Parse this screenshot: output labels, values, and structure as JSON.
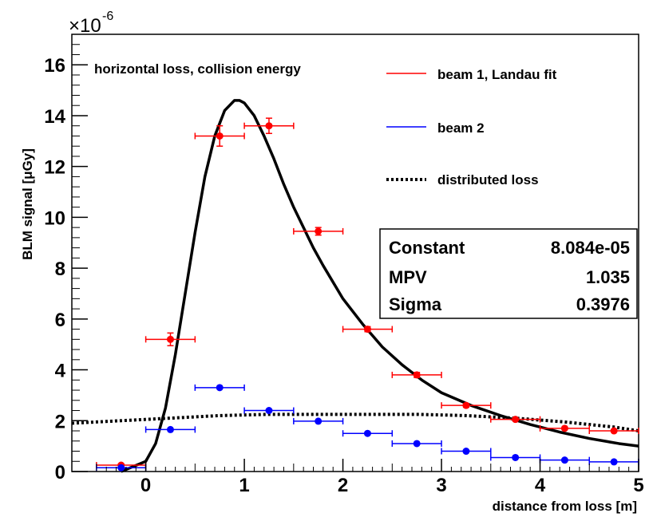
{
  "chart_data": {
    "type": "scatter",
    "xlabel": "distance from loss [m]",
    "ylabel": "BLM signal [μGy]",
    "y_multiplier": "×10",
    "y_multiplier_exponent": "-6",
    "annotation": "horizontal loss, collision energy",
    "xlim": [
      -0.75,
      5
    ],
    "ylim": [
      0,
      17.2
    ],
    "x_ticks": [
      0,
      1,
      2,
      3,
      4,
      5
    ],
    "y_ticks": [
      0,
      2,
      4,
      6,
      8,
      10,
      12,
      14,
      16
    ],
    "grid": false,
    "legend_position": "top-right",
    "series": [
      {
        "name": "beam 1, Landau fit",
        "color": "#ff0000",
        "x": [
          -0.25,
          0.25,
          0.75,
          1.25,
          1.75,
          2.25,
          2.75,
          3.25,
          3.75,
          4.25,
          4.75
        ],
        "x_err": 0.25,
        "y": [
          0.25,
          5.2,
          13.2,
          13.6,
          9.45,
          5.6,
          3.8,
          2.6,
          2.05,
          1.7,
          1.6
        ],
        "y_err": [
          0.05,
          0.25,
          0.4,
          0.3,
          0.15,
          0.1,
          0.1,
          0.07,
          0.05,
          0.05,
          0.05
        ]
      },
      {
        "name": "beam 2",
        "color": "#0000ff",
        "x": [
          -0.25,
          0.25,
          0.75,
          1.25,
          1.75,
          2.25,
          2.75,
          3.25,
          3.75,
          4.25,
          4.75
        ],
        "x_err": 0.25,
        "y": [
          0.15,
          1.65,
          3.3,
          2.4,
          1.98,
          1.5,
          1.1,
          0.8,
          0.55,
          0.45,
          0.38
        ]
      },
      {
        "name": "distributed loss",
        "style": "dotted",
        "color": "#000000",
        "x": [
          -0.75,
          -0.25,
          0.25,
          0.75,
          1.25,
          1.75,
          2.25,
          2.75,
          3.25,
          3.75,
          4.25,
          4.75,
          5.0
        ],
        "y": [
          1.9,
          2.0,
          2.1,
          2.2,
          2.25,
          2.25,
          2.25,
          2.25,
          2.2,
          2.1,
          1.95,
          1.75,
          1.6
        ]
      }
    ],
    "fit": {
      "function": "Landau",
      "color": "#000000",
      "x_range": [
        -0.25,
        5
      ],
      "stats": [
        {
          "label": "Constant",
          "value": "8.084e-05"
        },
        {
          "label": "MPV",
          "value": "1.035"
        },
        {
          "label": "Sigma",
          "value": "0.3976"
        }
      ],
      "curve_x": [
        -0.25,
        0.0,
        0.1,
        0.2,
        0.3,
        0.4,
        0.5,
        0.6,
        0.7,
        0.8,
        0.9,
        0.95,
        1.0,
        1.1,
        1.2,
        1.3,
        1.4,
        1.5,
        1.6,
        1.7,
        1.8,
        2.0,
        2.2,
        2.4,
        2.6,
        2.8,
        3.0,
        3.3,
        3.6,
        3.9,
        4.2,
        4.5,
        4.8,
        5.0
      ],
      "curve_y": [
        0.0,
        0.4,
        1.1,
        2.5,
        4.6,
        7.0,
        9.4,
        11.6,
        13.2,
        14.2,
        14.6,
        14.6,
        14.5,
        14.0,
        13.2,
        12.3,
        11.3,
        10.4,
        9.6,
        8.8,
        8.1,
        6.8,
        5.8,
        4.9,
        4.2,
        3.6,
        3.1,
        2.6,
        2.2,
        1.85,
        1.55,
        1.3,
        1.1,
        1.0
      ]
    }
  }
}
